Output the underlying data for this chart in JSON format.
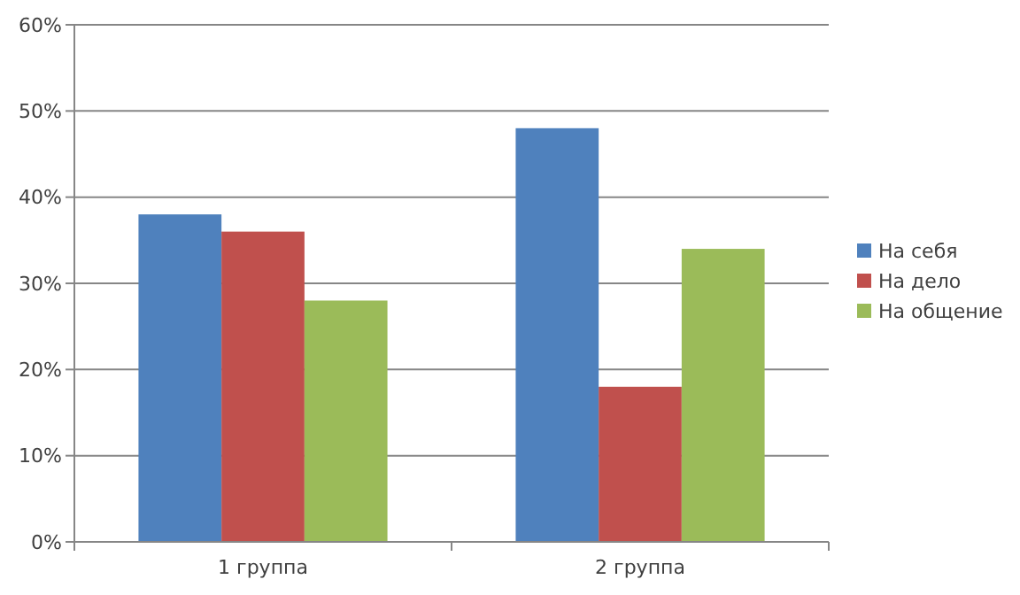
{
  "chart_data": {
    "type": "bar",
    "categories": [
      "1 группа",
      "2 группа"
    ],
    "series": [
      {
        "name": "На себя",
        "color": "#4f81bd",
        "values": [
          38,
          48
        ]
      },
      {
        "name": "На дело",
        "color": "#c0504d",
        "values": [
          36,
          18
        ]
      },
      {
        "name": "На общение",
        "color": "#9bbb59",
        "values": [
          28,
          34
        ]
      }
    ],
    "ylim": [
      0,
      60
    ],
    "yticks": [
      {
        "value": 0,
        "label": "0%"
      },
      {
        "value": 10,
        "label": "10%"
      },
      {
        "value": 20,
        "label": "20%"
      },
      {
        "value": 30,
        "label": "30%"
      },
      {
        "value": 40,
        "label": "40%"
      },
      {
        "value": 50,
        "label": "50%"
      },
      {
        "value": 60,
        "label": "60%"
      }
    ],
    "grid": "y",
    "legend": "right"
  }
}
